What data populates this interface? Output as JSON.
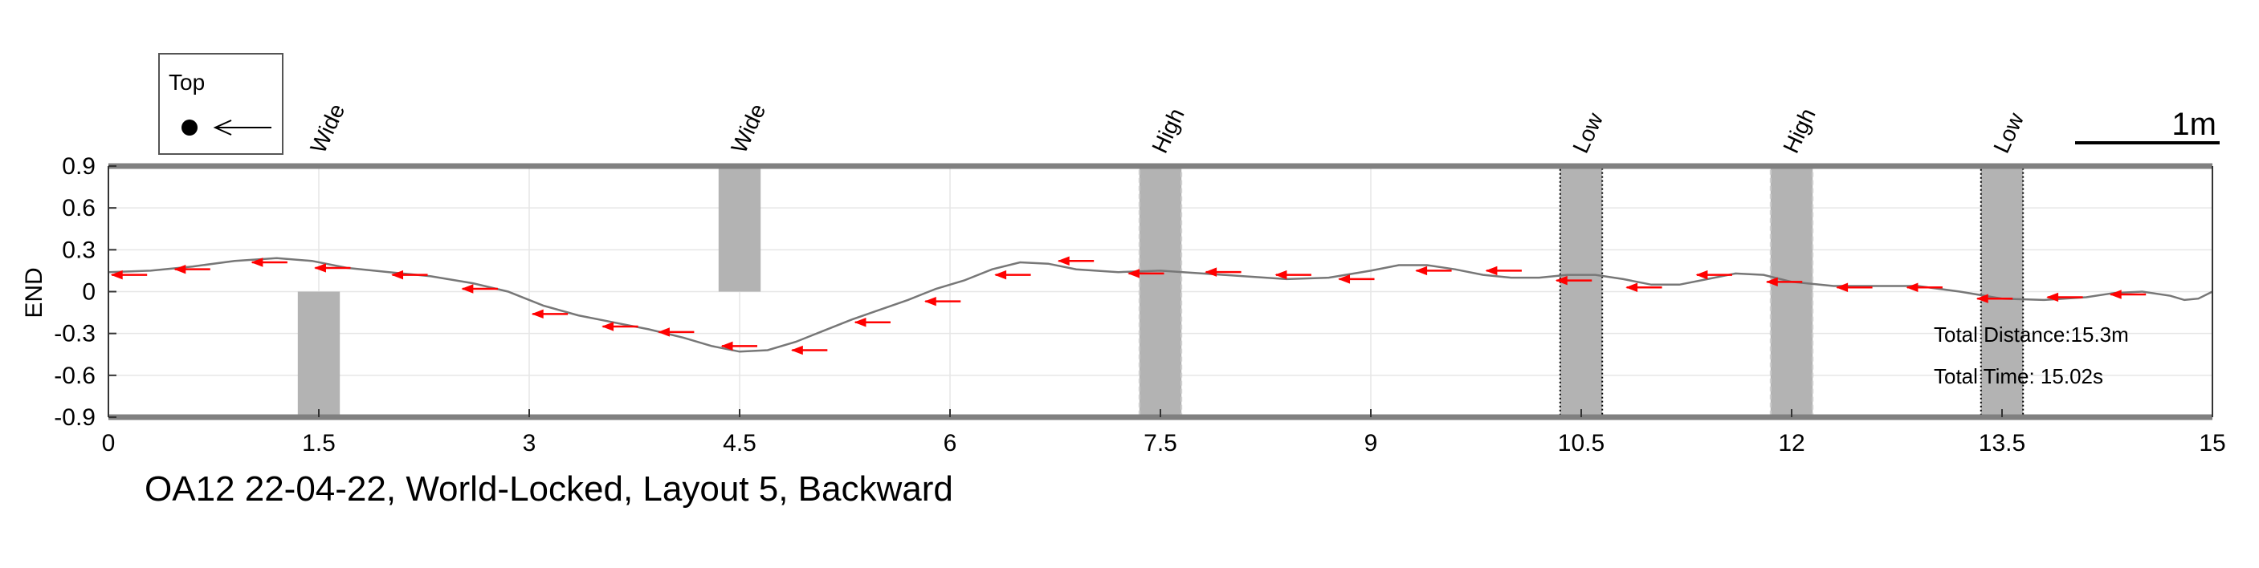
{
  "chart_data": {
    "type": "line",
    "title": "OA12 22-04-22, World-Locked, Layout 5, Backward",
    "xlabel": "",
    "ylabel": "END",
    "xlim": [
      0,
      15
    ],
    "ylim": [
      -0.9,
      0.9
    ],
    "x_ticks": [
      "0",
      "1.5",
      "3",
      "4.5",
      "6",
      "7.5",
      "9",
      "10.5",
      "12",
      "13.5",
      "15"
    ],
    "y_ticks": [
      "0.9",
      "0.6",
      "0.3",
      "0",
      "-0.3",
      "-0.6",
      "-0.9"
    ],
    "grid": true,
    "legend": {
      "position": "top-left",
      "label": "Top"
    },
    "scale_bar": {
      "label": "1m",
      "length_m": 1
    },
    "annotations": [
      "Total Distance:15.3m",
      "Total Time: 15.02s"
    ],
    "obstacles": [
      {
        "label": "Wide",
        "x": [
          1.35,
          1.65
        ],
        "y": [
          -0.9,
          0.0
        ],
        "style": "plain"
      },
      {
        "label": "Wide",
        "x": [
          4.35,
          4.65
        ],
        "y": [
          0.0,
          0.9
        ],
        "style": "plain"
      },
      {
        "label": "High",
        "x": [
          7.35,
          7.65
        ],
        "y": [
          -0.9,
          0.9
        ],
        "style": "dashed"
      },
      {
        "label": "Low",
        "x": [
          10.35,
          10.65
        ],
        "y": [
          -0.9,
          0.9
        ],
        "style": "dotted"
      },
      {
        "label": "High",
        "x": [
          11.85,
          12.15
        ],
        "y": [
          -0.9,
          0.9
        ],
        "style": "dashed"
      },
      {
        "label": "Low",
        "x": [
          13.35,
          13.65
        ],
        "y": [
          -0.9,
          0.9
        ],
        "style": "dotted"
      }
    ],
    "series": [
      {
        "color": "#777777",
        "x": [
          0,
          0.3,
          0.6,
          0.9,
          1.2,
          1.45,
          1.7,
          2.0,
          2.3,
          2.6,
          2.85,
          3.1,
          3.35,
          3.6,
          3.85,
          4.1,
          4.3,
          4.5,
          4.7,
          4.9,
          5.1,
          5.3,
          5.5,
          5.7,
          5.9,
          6.1,
          6.3,
          6.5,
          6.7,
          6.9,
          7.2,
          7.5,
          7.8,
          8.1,
          8.4,
          8.7,
          9.0,
          9.2,
          9.4,
          9.6,
          9.8,
          10.0,
          10.2,
          10.4,
          10.6,
          10.8,
          11.0,
          11.2,
          11.4,
          11.6,
          11.8,
          12.0,
          12.3,
          12.6,
          12.9,
          13.2,
          13.5,
          13.8,
          14.1,
          14.3,
          14.5,
          14.7,
          14.8,
          14.9,
          15.0
        ],
        "y": [
          0.14,
          0.15,
          0.18,
          0.22,
          0.24,
          0.22,
          0.17,
          0.14,
          0.11,
          0.06,
          0.0,
          -0.1,
          -0.17,
          -0.22,
          -0.27,
          -0.33,
          -0.39,
          -0.43,
          -0.42,
          -0.36,
          -0.28,
          -0.2,
          -0.13,
          -0.06,
          0.02,
          0.08,
          0.16,
          0.21,
          0.2,
          0.16,
          0.14,
          0.15,
          0.13,
          0.11,
          0.09,
          0.1,
          0.15,
          0.19,
          0.19,
          0.16,
          0.12,
          0.1,
          0.1,
          0.12,
          0.12,
          0.09,
          0.05,
          0.05,
          0.09,
          0.13,
          0.12,
          0.07,
          0.04,
          0.04,
          0.04,
          0.0,
          -0.05,
          -0.06,
          -0.04,
          -0.01,
          0.0,
          -0.03,
          -0.06,
          -0.05,
          0.0
        ]
      }
    ],
    "heading_arrows": {
      "color": "#ff0000",
      "direction": "left",
      "x": [
        0.15,
        0.6,
        1.15,
        1.6,
        2.15,
        2.65,
        3.15,
        3.65,
        4.05,
        4.5,
        5.0,
        5.45,
        5.95,
        6.45,
        6.9,
        7.4,
        7.95,
        8.45,
        8.9,
        9.45,
        9.95,
        10.45,
        10.95,
        11.45,
        11.95,
        12.45,
        12.95,
        13.45,
        13.95,
        14.4
      ],
      "y": [
        0.12,
        0.16,
        0.21,
        0.17,
        0.12,
        0.02,
        -0.16,
        -0.25,
        -0.29,
        -0.39,
        -0.42,
        -0.22,
        -0.07,
        0.12,
        0.22,
        0.13,
        0.14,
        0.12,
        0.09,
        0.15,
        0.15,
        0.08,
        0.03,
        0.12,
        0.07,
        0.03,
        0.03,
        -0.05,
        -0.04,
        -0.02
      ]
    }
  }
}
